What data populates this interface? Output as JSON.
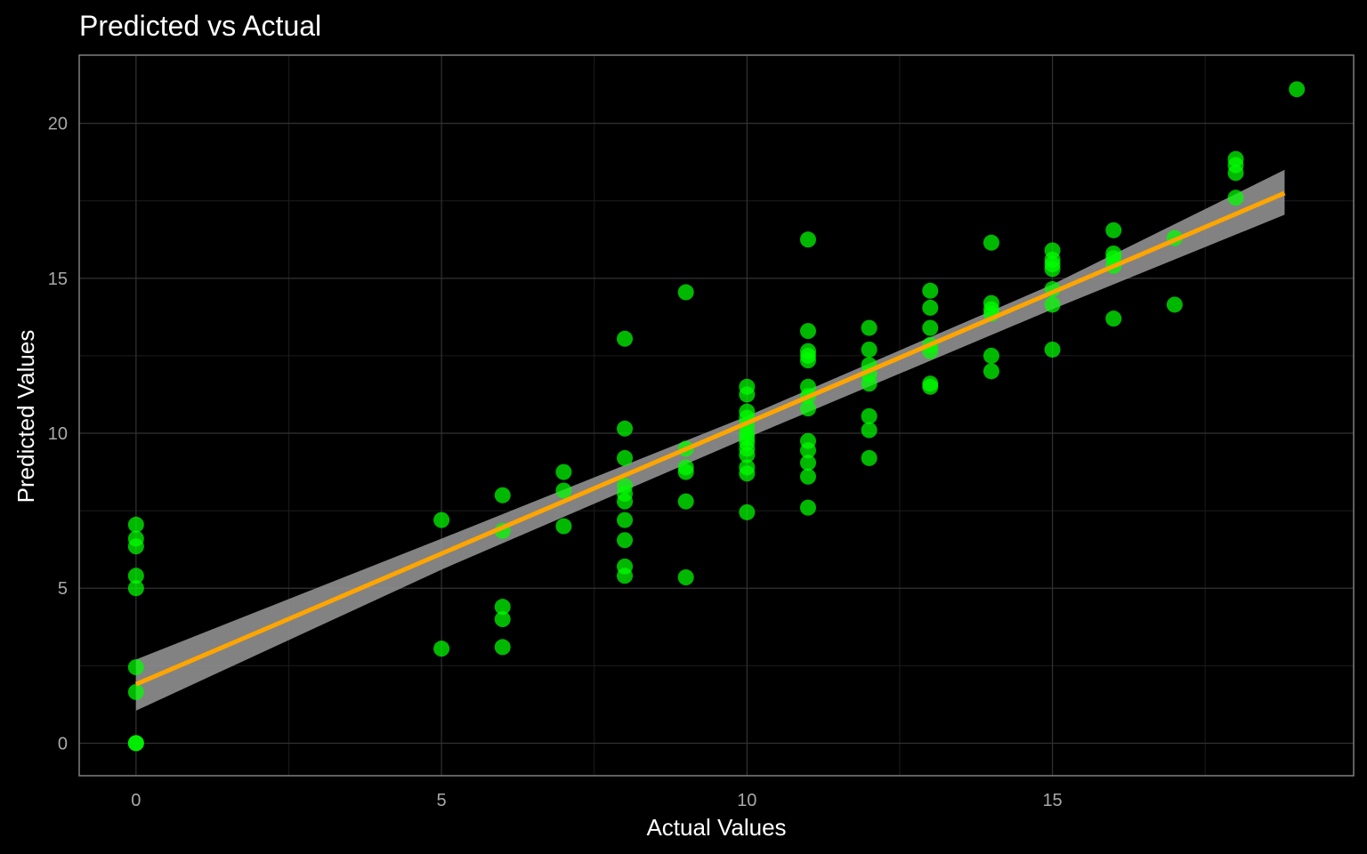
{
  "chart_data": {
    "type": "scatter",
    "title": "Predicted vs Actual",
    "xlabel": "Actual Values",
    "ylabel": "Predicted Values",
    "xlim": [
      -0.93,
      19.93
    ],
    "ylim": [
      -1.05,
      22.2
    ],
    "x_ticks": [
      0,
      5,
      10,
      15
    ],
    "y_ticks": [
      0,
      5,
      10,
      15,
      20
    ],
    "grid": true,
    "legend": "none",
    "colors": {
      "background": "#000000",
      "grid_major": "#333333",
      "grid_minor": "#1c1c1c",
      "panel_border": "#7f7f7f",
      "points": "#00ff00",
      "fit_line": "#ffa500",
      "confidence_band": "#999999"
    },
    "fit_line": {
      "x": [
        0,
        18.8
      ],
      "y": [
        1.9,
        17.75
      ]
    },
    "confidence_band": {
      "x": [
        0,
        5,
        10,
        15,
        18.8
      ],
      "lower": [
        1.05,
        5.6,
        9.85,
        14.0,
        17.05
      ],
      "upper": [
        2.7,
        6.6,
        10.55,
        14.8,
        18.5
      ]
    },
    "points": [
      {
        "x": 0,
        "y": 7.05
      },
      {
        "x": 0,
        "y": 6.6
      },
      {
        "x": 0,
        "y": 6.35
      },
      {
        "x": 0,
        "y": 5.4
      },
      {
        "x": 0,
        "y": 5.0
      },
      {
        "x": 0,
        "y": 2.45
      },
      {
        "x": 0,
        "y": 1.65
      },
      {
        "x": 0,
        "y": 0.0
      },
      {
        "x": 0,
        "y": 0.0
      },
      {
        "x": 5,
        "y": 7.2
      },
      {
        "x": 5,
        "y": 3.05
      },
      {
        "x": 6,
        "y": 8.0
      },
      {
        "x": 6,
        "y": 6.85
      },
      {
        "x": 6,
        "y": 4.4
      },
      {
        "x": 6,
        "y": 4.0
      },
      {
        "x": 6,
        "y": 3.1
      },
      {
        "x": 7,
        "y": 8.75
      },
      {
        "x": 7,
        "y": 8.15
      },
      {
        "x": 7,
        "y": 7.0
      },
      {
        "x": 8,
        "y": 13.05
      },
      {
        "x": 8,
        "y": 10.15
      },
      {
        "x": 8,
        "y": 9.2
      },
      {
        "x": 8,
        "y": 8.3
      },
      {
        "x": 8,
        "y": 8.05
      },
      {
        "x": 8,
        "y": 7.8
      },
      {
        "x": 8,
        "y": 7.2
      },
      {
        "x": 8,
        "y": 6.55
      },
      {
        "x": 8,
        "y": 5.7
      },
      {
        "x": 8,
        "y": 5.4
      },
      {
        "x": 9,
        "y": 14.55
      },
      {
        "x": 9,
        "y": 9.5
      },
      {
        "x": 9,
        "y": 8.9
      },
      {
        "x": 9,
        "y": 8.75
      },
      {
        "x": 9,
        "y": 7.8
      },
      {
        "x": 9,
        "y": 5.35
      },
      {
        "x": 10,
        "y": 11.5
      },
      {
        "x": 10,
        "y": 11.25
      },
      {
        "x": 10,
        "y": 10.7
      },
      {
        "x": 10,
        "y": 10.5
      },
      {
        "x": 10,
        "y": 10.25
      },
      {
        "x": 10,
        "y": 10.0
      },
      {
        "x": 10,
        "y": 9.85
      },
      {
        "x": 10,
        "y": 9.7
      },
      {
        "x": 10,
        "y": 9.5
      },
      {
        "x": 10,
        "y": 9.3
      },
      {
        "x": 10,
        "y": 8.9
      },
      {
        "x": 10,
        "y": 8.7
      },
      {
        "x": 10,
        "y": 7.45
      },
      {
        "x": 11,
        "y": 16.25
      },
      {
        "x": 11,
        "y": 13.3
      },
      {
        "x": 11,
        "y": 12.65
      },
      {
        "x": 11,
        "y": 12.5
      },
      {
        "x": 11,
        "y": 12.35
      },
      {
        "x": 11,
        "y": 11.5
      },
      {
        "x": 11,
        "y": 11.2
      },
      {
        "x": 11,
        "y": 10.8
      },
      {
        "x": 11,
        "y": 9.75
      },
      {
        "x": 11,
        "y": 9.45
      },
      {
        "x": 11,
        "y": 9.05
      },
      {
        "x": 11,
        "y": 8.6
      },
      {
        "x": 11,
        "y": 7.6
      },
      {
        "x": 12,
        "y": 13.4
      },
      {
        "x": 12,
        "y": 12.7
      },
      {
        "x": 12,
        "y": 12.2
      },
      {
        "x": 12,
        "y": 11.9
      },
      {
        "x": 12,
        "y": 11.6
      },
      {
        "x": 12,
        "y": 10.55
      },
      {
        "x": 12,
        "y": 10.1
      },
      {
        "x": 12,
        "y": 9.2
      },
      {
        "x": 13,
        "y": 14.6
      },
      {
        "x": 13,
        "y": 14.05
      },
      {
        "x": 13,
        "y": 13.4
      },
      {
        "x": 13,
        "y": 12.85
      },
      {
        "x": 13,
        "y": 12.65
      },
      {
        "x": 13,
        "y": 11.6
      },
      {
        "x": 13,
        "y": 11.5
      },
      {
        "x": 14,
        "y": 16.15
      },
      {
        "x": 14,
        "y": 14.2
      },
      {
        "x": 14,
        "y": 14.0
      },
      {
        "x": 14,
        "y": 13.85
      },
      {
        "x": 14,
        "y": 12.5
      },
      {
        "x": 14,
        "y": 12.0
      },
      {
        "x": 15,
        "y": 15.9
      },
      {
        "x": 15,
        "y": 15.6
      },
      {
        "x": 15,
        "y": 15.45
      },
      {
        "x": 15,
        "y": 15.3
      },
      {
        "x": 15,
        "y": 14.65
      },
      {
        "x": 15,
        "y": 14.15
      },
      {
        "x": 15,
        "y": 12.7
      },
      {
        "x": 16,
        "y": 16.55
      },
      {
        "x": 16,
        "y": 15.8
      },
      {
        "x": 16,
        "y": 15.65
      },
      {
        "x": 16,
        "y": 15.4
      },
      {
        "x": 16,
        "y": 13.7
      },
      {
        "x": 17,
        "y": 16.3
      },
      {
        "x": 17,
        "y": 14.15
      },
      {
        "x": 18,
        "y": 18.85
      },
      {
        "x": 18,
        "y": 18.65
      },
      {
        "x": 18,
        "y": 18.4
      },
      {
        "x": 18,
        "y": 17.6
      },
      {
        "x": 19,
        "y": 21.1
      }
    ]
  }
}
